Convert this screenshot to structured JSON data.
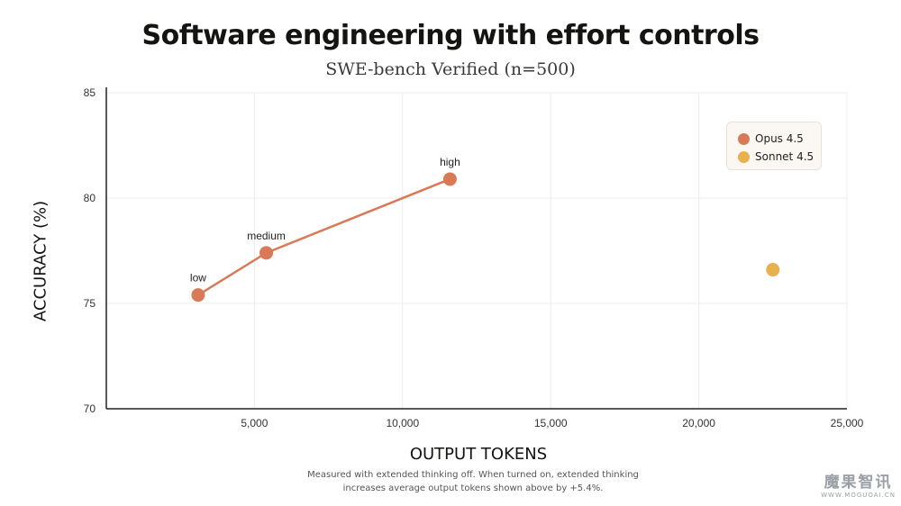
{
  "chart_data": {
    "type": "scatter",
    "title": "Software engineering with effort controls",
    "subtitle": "SWE-bench Verified (n=500)",
    "xlabel": "OUTPUT TOKENS",
    "ylabel": "ACCURACY (%)",
    "xlim": [
      0,
      25000
    ],
    "ylim": [
      70,
      85
    ],
    "x_ticks": [
      5000,
      10000,
      15000,
      20000,
      25000
    ],
    "x_tick_labels": [
      "5,000",
      "10,000",
      "15,000",
      "20,000",
      "25,000"
    ],
    "y_ticks": [
      70,
      75,
      80,
      85
    ],
    "y_tick_labels": [
      "70",
      "75",
      "80",
      "85"
    ],
    "grid": true,
    "legend_position": "top-right",
    "series": [
      {
        "name": "Opus 4.5",
        "color": "#d97a56",
        "connected": true,
        "points": [
          {
            "x": 3100,
            "y": 75.4,
            "label": "low"
          },
          {
            "x": 5400,
            "y": 77.4,
            "label": "medium"
          },
          {
            "x": 11600,
            "y": 80.9,
            "label": "high"
          }
        ]
      },
      {
        "name": "Sonnet 4.5",
        "color": "#e9b04f",
        "connected": false,
        "points": [
          {
            "x": 22500,
            "y": 76.6,
            "label": ""
          }
        ]
      }
    ],
    "footnote": [
      "Measured with extended thinking off. When turned on, extended thinking",
      "increases average output tokens shown above by +5.4%."
    ]
  },
  "watermark": {
    "main": "魔果智讯",
    "sub": "WWW.MOGUOAI.CN"
  }
}
